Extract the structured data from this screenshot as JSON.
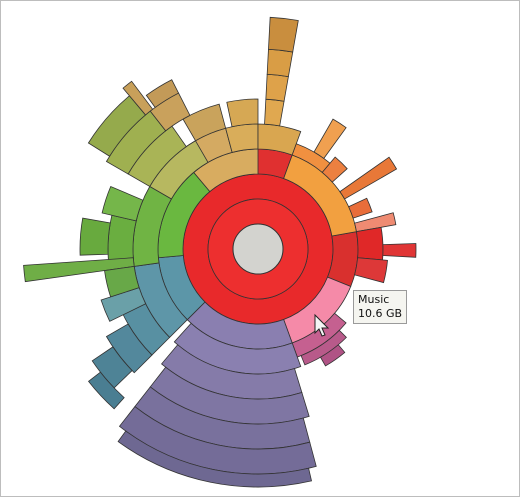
{
  "tooltip": {
    "name": "Music",
    "size": "10.6 GB"
  }
}
